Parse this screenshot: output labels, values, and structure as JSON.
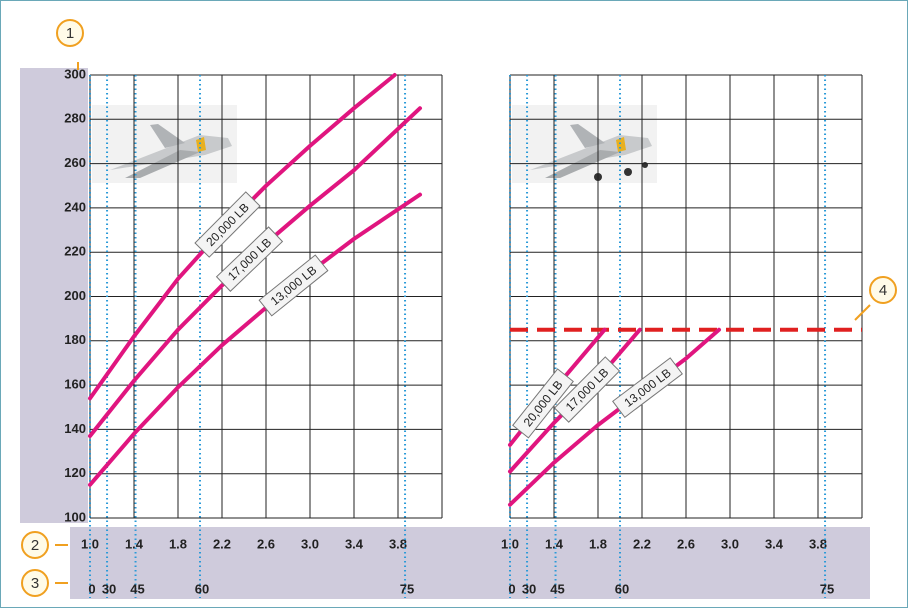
{
  "callouts": [
    "1",
    "2",
    "3",
    "4"
  ],
  "chart_data": [
    {
      "type": "line",
      "xlim": [
        1.0,
        4.2
      ],
      "ylim": [
        100,
        300
      ],
      "xticks": [
        {
          "value": 1.0,
          "label": "1.0"
        },
        1.4,
        1.8,
        2.2,
        2.6,
        {
          "value": 3.0,
          "label": "3.0"
        },
        3.4,
        3.8
      ],
      "yticks": [
        100,
        120,
        140,
        160,
        180,
        200,
        220,
        240,
        260,
        280,
        300
      ],
      "bank_ticks": [
        {
          "value": 1.0,
          "label": "0"
        },
        {
          "value": 1.155,
          "label": "30"
        },
        {
          "value": 1.414,
          "label": "45"
        },
        {
          "value": 2.0,
          "label": "60"
        },
        {
          "value": 3.864,
          "label": "75"
        }
      ],
      "grid": true,
      "series": [
        {
          "name": "20,000 LB",
          "color": "#e0157f",
          "x": [
            1.0,
            1.4,
            1.8,
            2.2,
            2.6,
            3.0,
            3.4,
            3.77
          ],
          "values": [
            154,
            182,
            208,
            230,
            250,
            268,
            285,
            300
          ]
        },
        {
          "name": "17,000 LB",
          "color": "#e0157f",
          "x": [
            1.0,
            1.4,
            1.8,
            2.2,
            2.6,
            3.0,
            3.4,
            4.0
          ],
          "values": [
            137,
            162,
            185,
            205,
            224,
            241,
            257,
            285
          ]
        },
        {
          "name": "13,000 LB",
          "color": "#e0157f",
          "x": [
            1.0,
            1.4,
            1.8,
            2.2,
            2.6,
            3.0,
            3.4,
            4.0
          ],
          "values": [
            115,
            138,
            159,
            178,
            195,
            211,
            226,
            246
          ]
        }
      ]
    },
    {
      "type": "line",
      "xlim": [
        1.0,
        4.2
      ],
      "ylim": [
        100,
        300
      ],
      "xticks": [
        {
          "value": 1.0,
          "label": "1.0"
        },
        1.4,
        1.8,
        2.2,
        2.6,
        {
          "value": 3.0,
          "label": "3.0"
        },
        3.4,
        3.8
      ],
      "bank_ticks": [
        {
          "value": 1.0,
          "label": "0"
        },
        {
          "value": 1.155,
          "label": "30"
        },
        {
          "value": 1.414,
          "label": "45"
        },
        {
          "value": 2.0,
          "label": "60"
        },
        {
          "value": 3.864,
          "label": "75"
        }
      ],
      "grid": true,
      "limit_line": {
        "value": 185,
        "color": "#e02020"
      },
      "series": [
        {
          "name": "20,000 LB",
          "color": "#e0157f",
          "x": [
            1.0,
            1.4,
            1.86
          ],
          "values": [
            133,
            158,
            185
          ]
        },
        {
          "name": "17,000 LB",
          "color": "#e0157f",
          "x": [
            1.0,
            1.4,
            1.8,
            2.18
          ],
          "values": [
            121,
            143,
            163,
            185
          ]
        },
        {
          "name": "13,000 LB",
          "color": "#e0157f",
          "x": [
            1.0,
            1.4,
            1.8,
            2.2,
            2.6,
            2.9
          ],
          "values": [
            106,
            125,
            142,
            157,
            172,
            185
          ]
        }
      ]
    }
  ]
}
